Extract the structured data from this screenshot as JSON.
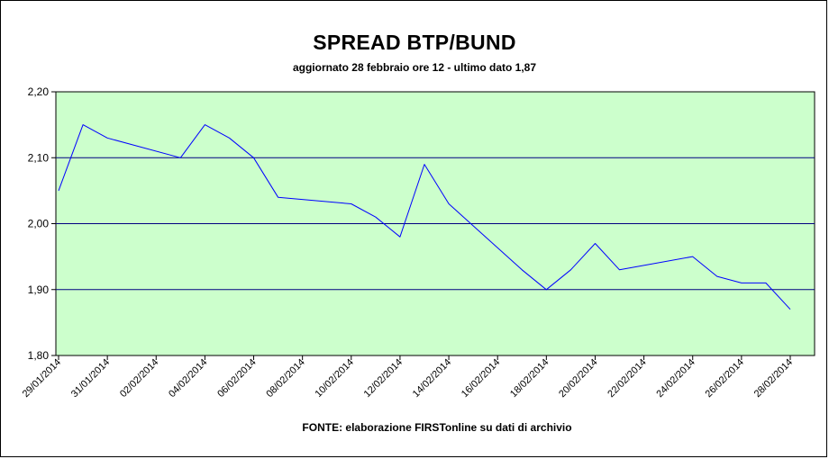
{
  "chart_data": {
    "type": "line",
    "title": "SPREAD BTP/BUND",
    "subtitle": "aggiornato 28 febbraio ore 12 - ultimo dato 1,87",
    "source": "FONTE:  elaborazione FIRSTonline su dati di archivio",
    "xlabel": "",
    "ylabel": "",
    "ylim": [
      1.8,
      2.2
    ],
    "y_ticks": [
      "1,80",
      "1,90",
      "2,00",
      "2,10",
      "2,20"
    ],
    "x_ticks": [
      "29/01/2014",
      "31/01/2014",
      "02/02/2014",
      "04/02/2014",
      "06/02/2014",
      "08/02/2014",
      "10/02/2014",
      "12/02/2014",
      "14/02/2014",
      "16/02/2014",
      "18/02/2014",
      "20/02/2014",
      "22/02/2014",
      "24/02/2014",
      "26/02/2014",
      "28/02/2014"
    ],
    "grid": true,
    "legend": "none",
    "series": [
      {
        "points": [
          {
            "x": "29/01/2014",
            "y": 2.05
          },
          {
            "x": "30/01/2014",
            "y": 2.15
          },
          {
            "x": "31/01/2014",
            "y": 2.13
          },
          {
            "x": "03/02/2014",
            "y": 2.1
          },
          {
            "x": "04/02/2014",
            "y": 2.15
          },
          {
            "x": "05/02/2014",
            "y": 2.13
          },
          {
            "x": "06/02/2014",
            "y": 2.1
          },
          {
            "x": "07/02/2014",
            "y": 2.04
          },
          {
            "x": "10/02/2014",
            "y": 2.03
          },
          {
            "x": "11/02/2014",
            "y": 2.01
          },
          {
            "x": "12/02/2014",
            "y": 1.98
          },
          {
            "x": "13/02/2014",
            "y": 2.09
          },
          {
            "x": "14/02/2014",
            "y": 2.03
          },
          {
            "x": "17/02/2014",
            "y": 1.93
          },
          {
            "x": "18/02/2014",
            "y": 1.9
          },
          {
            "x": "19/02/2014",
            "y": 1.93
          },
          {
            "x": "20/02/2014",
            "y": 1.97
          },
          {
            "x": "21/02/2014",
            "y": 1.93
          },
          {
            "x": "24/02/2014",
            "y": 1.95
          },
          {
            "x": "25/02/2014",
            "y": 1.92
          },
          {
            "x": "26/02/2014",
            "y": 1.91
          },
          {
            "x": "27/02/2014",
            "y": 1.91
          },
          {
            "x": "28/02/2014",
            "y": 1.87
          }
        ]
      }
    ]
  },
  "colors": {
    "plot_background": "#ccffcc",
    "line": "#0000ff",
    "gridline": "#000080",
    "axis": "#000000"
  }
}
